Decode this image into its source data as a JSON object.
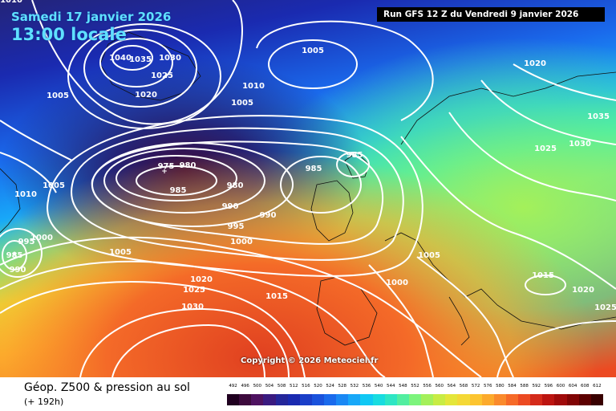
{
  "header": {
    "date_label": "Samedi 17 janvier 2026",
    "time_label": "13:00 locale",
    "run_label": "Run GFS 12 Z du Vendredi 9 janvier 2026"
  },
  "copyright": "Copyright © 2026 Meteociel.fr",
  "footer": {
    "title": "Géop. Z500 & pression au sol",
    "lead_time": "(+ 192h)"
  },
  "scale": {
    "labels": [
      "492",
      "496",
      "500",
      "504",
      "508",
      "512",
      "516",
      "520",
      "524",
      "528",
      "532",
      "536",
      "540",
      "544",
      "548",
      "552",
      "556",
      "560",
      "564",
      "568",
      "572",
      "576",
      "580",
      "584",
      "588",
      "592",
      "596",
      "600",
      "604",
      "608",
      "612"
    ],
    "colors": [
      "#200020",
      "#3c0a3c",
      "#4e1260",
      "#3a1a80",
      "#24269a",
      "#1a2ab0",
      "#1a3ec8",
      "#1a52dc",
      "#1a6aec",
      "#1a88f4",
      "#18a8f8",
      "#10c8f4",
      "#18dce0",
      "#2ee6c4",
      "#52eea0",
      "#7cf47c",
      "#a4f05a",
      "#c8ec44",
      "#e4e63a",
      "#f4d836",
      "#fcc430",
      "#fcaa2c",
      "#fa8a2c",
      "#f66a28",
      "#ec4a22",
      "#d42a1a",
      "#bc1410",
      "#a00a0a",
      "#800404",
      "#5c0000",
      "#380000"
    ]
  },
  "colors": {
    "background_gradient": [
      "#242478",
      "#1a2ab0",
      "#1a6aec",
      "#18a8f8",
      "#52eea0",
      "#e4e63a",
      "#fcaa2c",
      "#ec4a22"
    ],
    "isobar": "#ffffff",
    "coast": "#101010",
    "label_text": "#ffffff",
    "run_bg": "#000000"
  },
  "isobar_labels": [
    {
      "text": "1040"
    },
    {
      "text": "1035"
    },
    {
      "text": "1030"
    },
    {
      "text": "1025"
    },
    {
      "text": "1020"
    },
    {
      "text": "1005"
    },
    {
      "text": "1010"
    },
    {
      "text": "1005"
    },
    {
      "text": "1005"
    },
    {
      "text": "1010"
    },
    {
      "text": "975"
    },
    {
      "text": "980"
    },
    {
      "text": "985"
    },
    {
      "text": "980"
    },
    {
      "text": "985"
    },
    {
      "text": "985"
    },
    {
      "text": "990"
    },
    {
      "text": "990"
    },
    {
      "text": "995"
    },
    {
      "text": "1000"
    },
    {
      "text": "1005"
    },
    {
      "text": "1000"
    },
    {
      "text": "995"
    },
    {
      "text": "985"
    },
    {
      "text": "990"
    },
    {
      "text": "1005"
    },
    {
      "text": "1020"
    },
    {
      "text": "1025"
    },
    {
      "text": "1030"
    },
    {
      "text": "1015"
    },
    {
      "text": "1005"
    },
    {
      "text": "1000"
    },
    {
      "text": "1020"
    },
    {
      "text": "1025"
    },
    {
      "text": "1030"
    },
    {
      "text": "1035"
    },
    {
      "text": "1015"
    },
    {
      "text": "1020"
    },
    {
      "text": "1025"
    },
    {
      "text": "1010"
    }
  ]
}
